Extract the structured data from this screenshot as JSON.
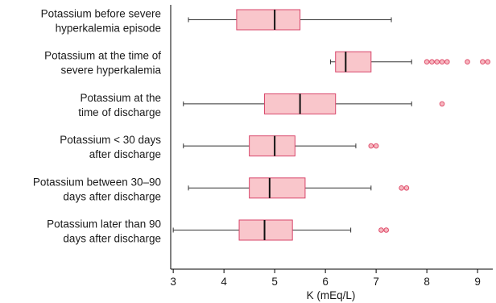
{
  "chart_data": {
    "type": "boxplot",
    "orientation": "horizontal",
    "xlabel": "K (mEq/L)",
    "xlim": [
      2.95,
      9.3
    ],
    "xticks": [
      3,
      4,
      5,
      6,
      7,
      8,
      9
    ],
    "colors": {
      "box_fill": "#f9c6cb",
      "box_stroke": "#d8456a",
      "outlier": "#e0506e",
      "whisker": "#333333",
      "median": "#111111"
    },
    "categories": [
      {
        "lines": [
          "Potassium before severe",
          "hyperkalemia episode"
        ],
        "whisker_low": 3.3,
        "q1": 4.25,
        "median": 5.0,
        "q3": 5.5,
        "whisker_high": 7.3,
        "outliers": []
      },
      {
        "lines": [
          "Potassium at the time of",
          "severe hyperkalemia"
        ],
        "whisker_low": 6.1,
        "q1": 6.2,
        "median": 6.4,
        "q3": 6.9,
        "whisker_high": 7.7,
        "outliers": [
          8.0,
          8.1,
          8.2,
          8.3,
          8.4,
          8.8,
          9.1,
          9.2
        ]
      },
      {
        "lines": [
          "Potassium at the",
          "time of discharge"
        ],
        "whisker_low": 3.2,
        "q1": 4.8,
        "median": 5.5,
        "q3": 6.2,
        "whisker_high": 7.7,
        "outliers": [
          8.3
        ]
      },
      {
        "lines": [
          "Potassium < 30 days",
          "after discharge"
        ],
        "whisker_low": 3.2,
        "q1": 4.5,
        "median": 5.0,
        "q3": 5.4,
        "whisker_high": 6.6,
        "outliers": [
          6.9,
          7.0
        ]
      },
      {
        "lines": [
          "Potassium between 30–90",
          "days after discharge"
        ],
        "whisker_low": 3.3,
        "q1": 4.5,
        "median": 4.9,
        "q3": 5.6,
        "whisker_high": 6.9,
        "outliers": [
          7.5,
          7.6
        ]
      },
      {
        "lines": [
          "Potassium later than 90",
          "days after discharge"
        ],
        "whisker_low": 3.0,
        "q1": 4.3,
        "median": 4.8,
        "q3": 5.35,
        "whisker_high": 6.5,
        "outliers": [
          7.1,
          7.2
        ]
      }
    ]
  }
}
